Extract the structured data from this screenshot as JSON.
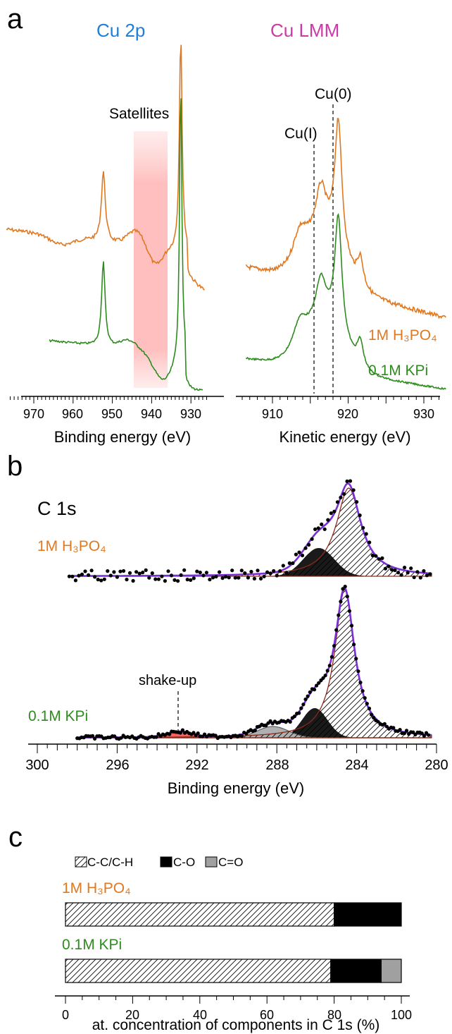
{
  "colors": {
    "orange": "#e07820",
    "green": "#2e8b1e",
    "blue": "#1f7fd8",
    "magenta": "#cc3aa8",
    "purple": "#7a2fd6",
    "darkred": "#8b2a1a",
    "red": "#e02020",
    "black": "#000000",
    "gray": "#a0a0a0",
    "satellite_band": "#ffb8b8"
  },
  "panel_a": {
    "label": "a",
    "cu2p_title": "Cu 2p",
    "culmm_title": "Cu LMM",
    "satellites_label": "Satellites",
    "cu0_label": "Cu(0)",
    "cu1_label": "Cu(I)",
    "series1_label": "1M H₃PO₄",
    "series2_label": "0.1M KPi",
    "xlabel_left": "Binding energy (eV)",
    "xlabel_right": "Kinetic energy (eV)",
    "left_ticks": [
      "970",
      "960",
      "950",
      "940",
      "930"
    ],
    "right_ticks": [
      "910",
      "915",
      "920",
      "925",
      "930"
    ],
    "right_ticks_shown": [
      "910",
      "920",
      "930"
    ]
  },
  "panel_b": {
    "label": "b",
    "title": "C 1s",
    "series1_label": "1M H₃PO₄",
    "series2_label": "0.1M KPi",
    "shakeup_label": "shake-up",
    "xlabel": "Binding energy (eV)",
    "ticks": [
      "300",
      "296",
      "292",
      "288",
      "284",
      "280"
    ]
  },
  "panel_c": {
    "label": "c",
    "legend": [
      "C-C/C-H",
      "C-O",
      "C=O"
    ],
    "series1_label": "1M H₃PO₄",
    "series2_label": "0.1M KPi",
    "xlabel": "at. concentration of components in C 1s (%)",
    "ticks": [
      "0",
      "20",
      "40",
      "60",
      "80",
      "100"
    ]
  },
  "chart_data": [
    {
      "type": "line",
      "xlabel": "Binding energy (eV)",
      "xlim": [
        977,
        926
      ],
      "series": [
        {
          "name": "1M H₃PO₄",
          "peaks_eV": [
            952.3,
            932.6
          ]
        },
        {
          "name": "0.1M KPi",
          "peaks_eV": [
            952.3,
            932.6
          ]
        }
      ],
      "annotations": [
        "Cu 2p",
        "Satellites"
      ],
      "satellite_range_eV": [
        949,
        940
      ]
    },
    {
      "type": "line",
      "xlabel": "Kinetic energy (eV)",
      "xlim": [
        906,
        933
      ],
      "series": [
        {
          "name": "1M H₃PO₄",
          "peak_eV": 918.7
        },
        {
          "name": "0.1M KPi",
          "peak_eV": 918.7
        }
      ],
      "annotations": [
        "Cu LMM",
        "Cu(0)",
        "Cu(I)"
      ],
      "reference_lines_eV": {
        "Cu(0)": 918.7,
        "Cu(I)": 916.5
      }
    },
    {
      "type": "scatter",
      "title": "C 1s",
      "xlabel": "Binding energy (eV)",
      "xlim": [
        300,
        280
      ],
      "series": [
        {
          "name": "1M H₃PO₄",
          "components_eV": {
            "C-C/C-H": 284.4,
            "C-O": 285.9
          }
        },
        {
          "name": "0.1M KPi",
          "components_eV": {
            "C-C/C-H": 284.6,
            "C-O": 286.1,
            "C=O": 288.2,
            "shake-up": 292.9
          }
        }
      ]
    },
    {
      "type": "bar",
      "orientation": "horizontal",
      "stacked": true,
      "xlabel": "at. concentration of components in C 1s (%)",
      "xlim": [
        0,
        100
      ],
      "categories": [
        "1M H₃PO₄",
        "0.1M KPi"
      ],
      "series": [
        {
          "name": "C-C/C-H",
          "values": [
            80,
            79
          ]
        },
        {
          "name": "C-O",
          "values": [
            20,
            15
          ]
        },
        {
          "name": "C=O",
          "values": [
            0,
            6
          ]
        }
      ]
    }
  ]
}
